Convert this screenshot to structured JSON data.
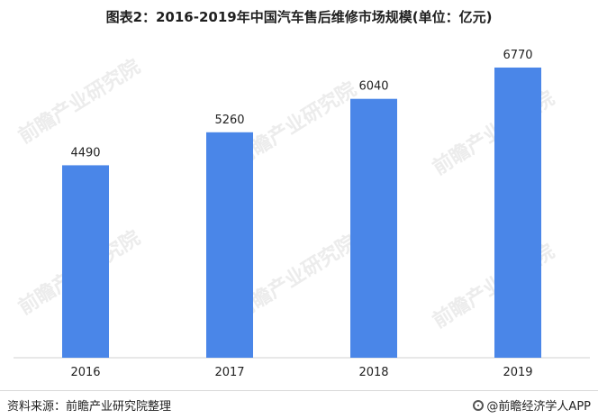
{
  "title": "图表2：2016-2019年中国汽车售后维修市场规模(单位：亿元)",
  "watermark": "前瞻产业研究院",
  "footer": {
    "source": "资料来源：前瞻产业研究院整理",
    "brand": "@前瞻经济学人APP"
  },
  "colors": {
    "bar": "#4a86e8",
    "axis": "#d0d0d0",
    "text": "#222222"
  },
  "chart_data": {
    "type": "bar",
    "title": "图表2：2016-2019年中国汽车售后维修市场规模(单位：亿元)",
    "categories": [
      "2016",
      "2017",
      "2018",
      "2019"
    ],
    "values": [
      4490,
      5260,
      6040,
      6770
    ],
    "ylim": [
      0,
      7400
    ],
    "grid": false,
    "legend": "none",
    "xlabel": "",
    "ylabel": ""
  }
}
